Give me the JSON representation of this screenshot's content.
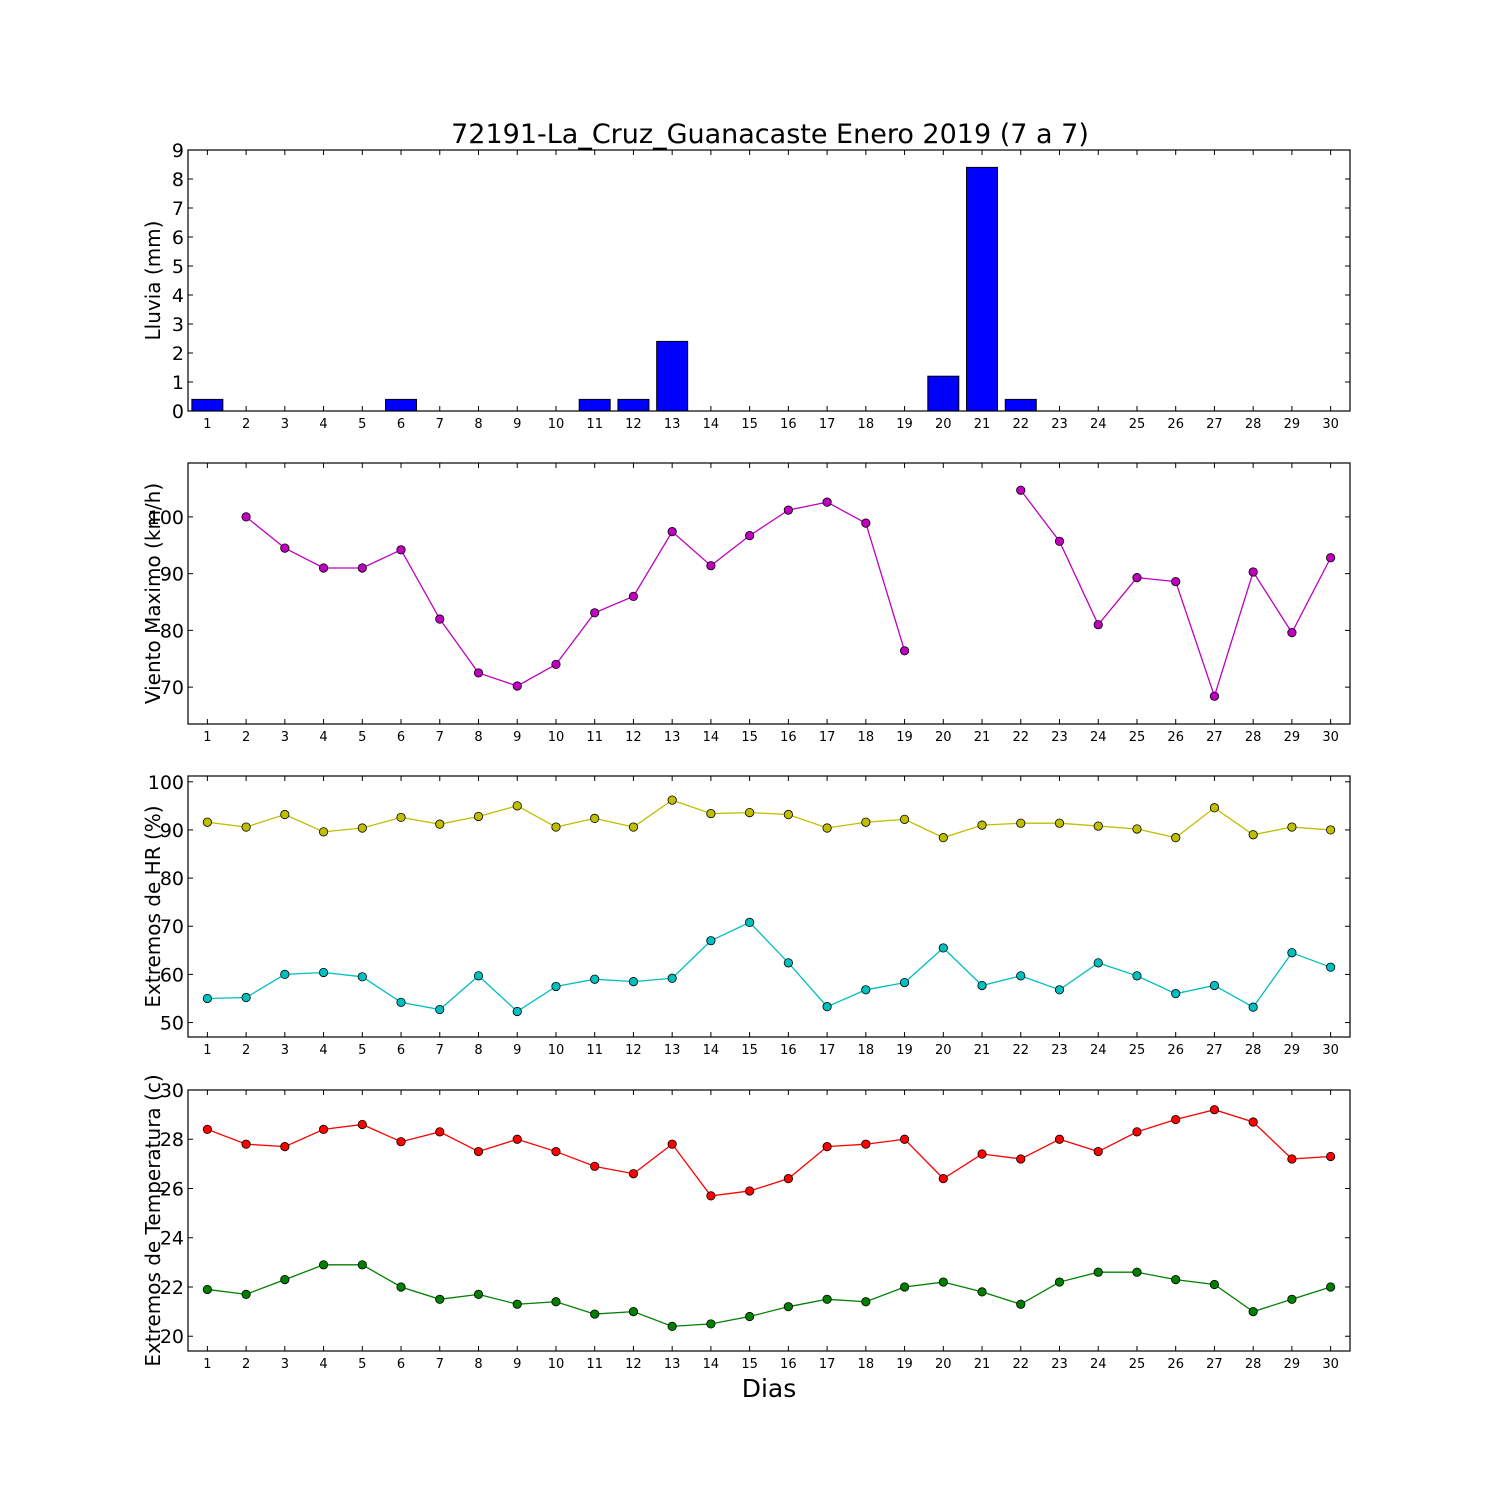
{
  "chart_data": {
    "title": "72191-La_Cruz_Guanacaste Enero 2019  (7 a 7)",
    "xlabel": "Dias",
    "days": [
      1,
      2,
      3,
      4,
      5,
      6,
      7,
      8,
      9,
      10,
      11,
      12,
      13,
      14,
      15,
      16,
      17,
      18,
      19,
      20,
      21,
      22,
      23,
      24,
      25,
      26,
      27,
      28,
      29,
      30
    ],
    "panels": [
      {
        "type": "bar",
        "ylabel": "Lluvia (mm)",
        "ylim": [
          0,
          9
        ],
        "yticks": [
          0,
          1,
          2,
          3,
          4,
          5,
          6,
          7,
          8,
          9
        ],
        "series": [
          {
            "color": "#0000ff",
            "values": [
              0.4,
              0,
              0,
              0,
              0,
              0.4,
              0,
              0,
              0,
              0,
              0.4,
              0.4,
              2.4,
              0,
              0,
              0,
              0,
              0,
              0,
              1.2,
              8.4,
              0.4,
              0,
              0,
              0,
              0,
              0,
              0,
              0,
              0
            ]
          }
        ]
      },
      {
        "type": "line",
        "ylabel": "Viento Maximo (km/h)",
        "ylim": [
          63.5,
          109.5
        ],
        "yticks": [
          70,
          80,
          90,
          100
        ],
        "series": [
          {
            "color": "#bf00bf",
            "values": [
              null,
              100.0,
              94.5,
              91.0,
              91.0,
              94.2,
              82.0,
              72.5,
              70.2,
              74.0,
              83.1,
              86.0,
              97.4,
              91.4,
              96.7,
              101.2,
              102.6,
              98.9,
              76.4,
              null,
              null,
              104.7,
              95.7,
              81.0,
              89.3,
              88.6,
              68.4,
              90.3,
              79.6,
              92.8
            ]
          }
        ]
      },
      {
        "type": "line",
        "ylabel": "Extremos de HR (%)",
        "ylim": [
          47,
          101.2
        ],
        "yticks": [
          50,
          60,
          70,
          80,
          90,
          100
        ],
        "series": [
          {
            "color": "#bfbf00",
            "values": [
              91.6,
              90.6,
              93.2,
              89.6,
              90.4,
              92.6,
              91.2,
              92.8,
              95.0,
              90.6,
              92.4,
              90.6,
              96.2,
              93.4,
              93.6,
              93.2,
              90.4,
              91.6,
              92.2,
              88.4,
              91.0,
              91.4,
              91.4,
              90.8,
              90.2,
              88.4,
              94.6,
              89.0,
              90.6,
              90.0
            ]
          },
          {
            "color": "#00bfbf",
            "values": [
              55.0,
              55.2,
              60.0,
              60.4,
              59.5,
              54.2,
              52.7,
              59.7,
              52.3,
              57.5,
              59.0,
              58.5,
              59.2,
              67.0,
              70.8,
              62.4,
              53.3,
              56.8,
              58.3,
              65.5,
              57.7,
              59.7,
              56.8,
              62.4,
              59.7,
              56.0,
              57.7,
              53.2,
              64.5,
              61.5
            ]
          }
        ]
      },
      {
        "type": "line",
        "ylabel": "Extremos de Temperatura (c)",
        "ylim": [
          19.4,
          30
        ],
        "yticks": [
          20,
          22,
          24,
          26,
          28,
          30
        ],
        "series": [
          {
            "color": "#ff0000",
            "values": [
              28.4,
              27.8,
              27.7,
              28.4,
              28.6,
              27.9,
              28.3,
              27.5,
              28.0,
              27.5,
              26.9,
              26.6,
              27.8,
              25.7,
              25.9,
              26.4,
              27.7,
              27.8,
              28.0,
              26.4,
              27.4,
              27.2,
              28.0,
              27.5,
              28.3,
              28.8,
              29.2,
              28.7,
              27.2,
              27.3
            ]
          },
          {
            "color": "#008000",
            "values": [
              21.9,
              21.7,
              22.3,
              22.9,
              22.9,
              22.0,
              21.5,
              21.7,
              21.3,
              21.4,
              20.9,
              21.0,
              20.4,
              20.5,
              20.8,
              21.2,
              21.5,
              21.4,
              22.0,
              22.2,
              21.8,
              21.3,
              22.2,
              22.6,
              22.6,
              22.3,
              22.1,
              21.0,
              21.5,
              22.0
            ]
          }
        ]
      }
    ]
  }
}
